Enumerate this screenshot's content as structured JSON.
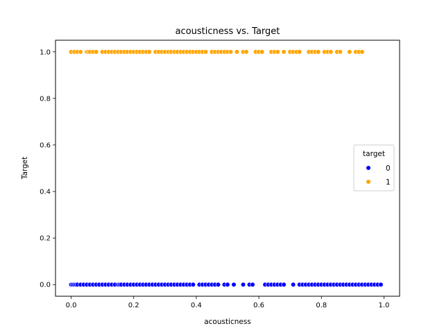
{
  "chart_data": {
    "type": "scatter",
    "title": "acousticness vs. Target",
    "xlabel": "acousticness",
    "ylabel": "Target",
    "xlim": [
      -0.05,
      1.05
    ],
    "ylim": [
      -0.05,
      1.05
    ],
    "x_ticks": [
      "0.0",
      "0.2",
      "0.4",
      "0.6",
      "0.8",
      "1.0"
    ],
    "y_ticks": [
      "0.0",
      "0.2",
      "0.4",
      "0.6",
      "0.8",
      "1.0"
    ],
    "grid": false,
    "legend": {
      "title": "target",
      "placement": "center-right"
    },
    "series": [
      {
        "name": "0",
        "color": "#0000ff",
        "y": 0,
        "x": [
          0.0,
          0.005,
          0.01,
          0.015,
          0.02,
          0.03,
          0.04,
          0.05,
          0.06,
          0.07,
          0.08,
          0.09,
          0.1,
          0.11,
          0.12,
          0.13,
          0.14,
          0.15,
          0.155,
          0.16,
          0.17,
          0.18,
          0.19,
          0.2,
          0.21,
          0.22,
          0.23,
          0.24,
          0.25,
          0.26,
          0.27,
          0.28,
          0.29,
          0.3,
          0.31,
          0.32,
          0.33,
          0.34,
          0.35,
          0.36,
          0.37,
          0.38,
          0.39,
          0.41,
          0.42,
          0.43,
          0.44,
          0.45,
          0.46,
          0.47,
          0.49,
          0.5,
          0.52,
          0.55,
          0.57,
          0.58,
          0.62,
          0.63,
          0.64,
          0.65,
          0.66,
          0.67,
          0.68,
          0.71,
          0.73,
          0.74,
          0.75,
          0.76,
          0.77,
          0.78,
          0.79,
          0.8,
          0.81,
          0.82,
          0.83,
          0.84,
          0.85,
          0.86,
          0.87,
          0.88,
          0.89,
          0.9,
          0.91,
          0.92,
          0.93,
          0.94,
          0.95,
          0.96,
          0.97,
          0.98,
          0.99
        ]
      },
      {
        "name": "1",
        "color": "#ffa500",
        "y": 1,
        "x": [
          0.0,
          0.01,
          0.02,
          0.03,
          0.05,
          0.055,
          0.06,
          0.07,
          0.08,
          0.1,
          0.11,
          0.12,
          0.13,
          0.14,
          0.15,
          0.16,
          0.17,
          0.18,
          0.19,
          0.2,
          0.21,
          0.22,
          0.23,
          0.24,
          0.25,
          0.27,
          0.28,
          0.29,
          0.3,
          0.31,
          0.32,
          0.33,
          0.34,
          0.35,
          0.36,
          0.37,
          0.38,
          0.39,
          0.4,
          0.41,
          0.42,
          0.43,
          0.45,
          0.46,
          0.47,
          0.48,
          0.49,
          0.5,
          0.51,
          0.53,
          0.55,
          0.56,
          0.59,
          0.6,
          0.61,
          0.64,
          0.65,
          0.66,
          0.68,
          0.7,
          0.71,
          0.72,
          0.73,
          0.76,
          0.77,
          0.78,
          0.79,
          0.81,
          0.82,
          0.83,
          0.85,
          0.86,
          0.89,
          0.91,
          0.92,
          0.93
        ]
      }
    ]
  }
}
